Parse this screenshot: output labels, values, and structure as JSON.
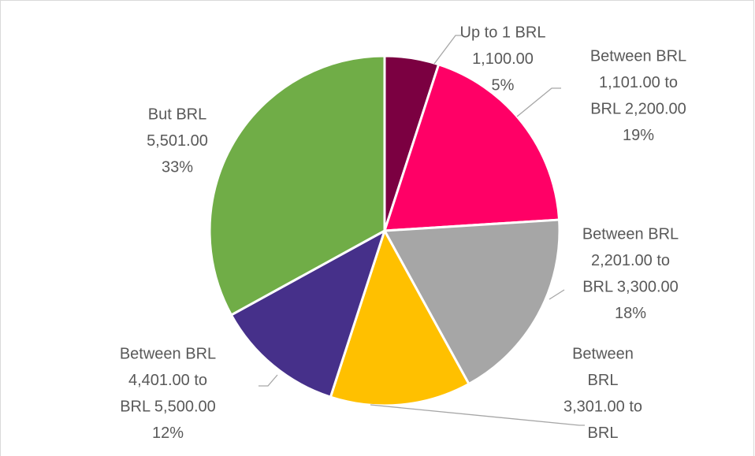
{
  "chart_data": {
    "type": "pie",
    "categories": [
      [
        "Up to 1 BRL",
        "1,100.00"
      ],
      [
        "Between BRL",
        "1,101.00 to",
        "BRL 2,200.00"
      ],
      [
        "Between BRL",
        "2,201.00 to",
        "BRL 3,300.00"
      ],
      [
        "Between",
        "BRL",
        "3,301.00 to",
        "BRL"
      ],
      [
        "Between BRL",
        "4,401.00 to",
        "BRL 5,500.00"
      ],
      [
        "But BRL",
        "5,501.00"
      ]
    ],
    "values": [
      5,
      19,
      18,
      13,
      12,
      33
    ],
    "value_labels": [
      "5%",
      "19%",
      "18%",
      null,
      "12%",
      "33%"
    ],
    "colors": [
      "#7b0041",
      "#ff0066",
      "#a6a6a6",
      "#ffc000",
      "#46308a",
      "#70ad47"
    ]
  }
}
